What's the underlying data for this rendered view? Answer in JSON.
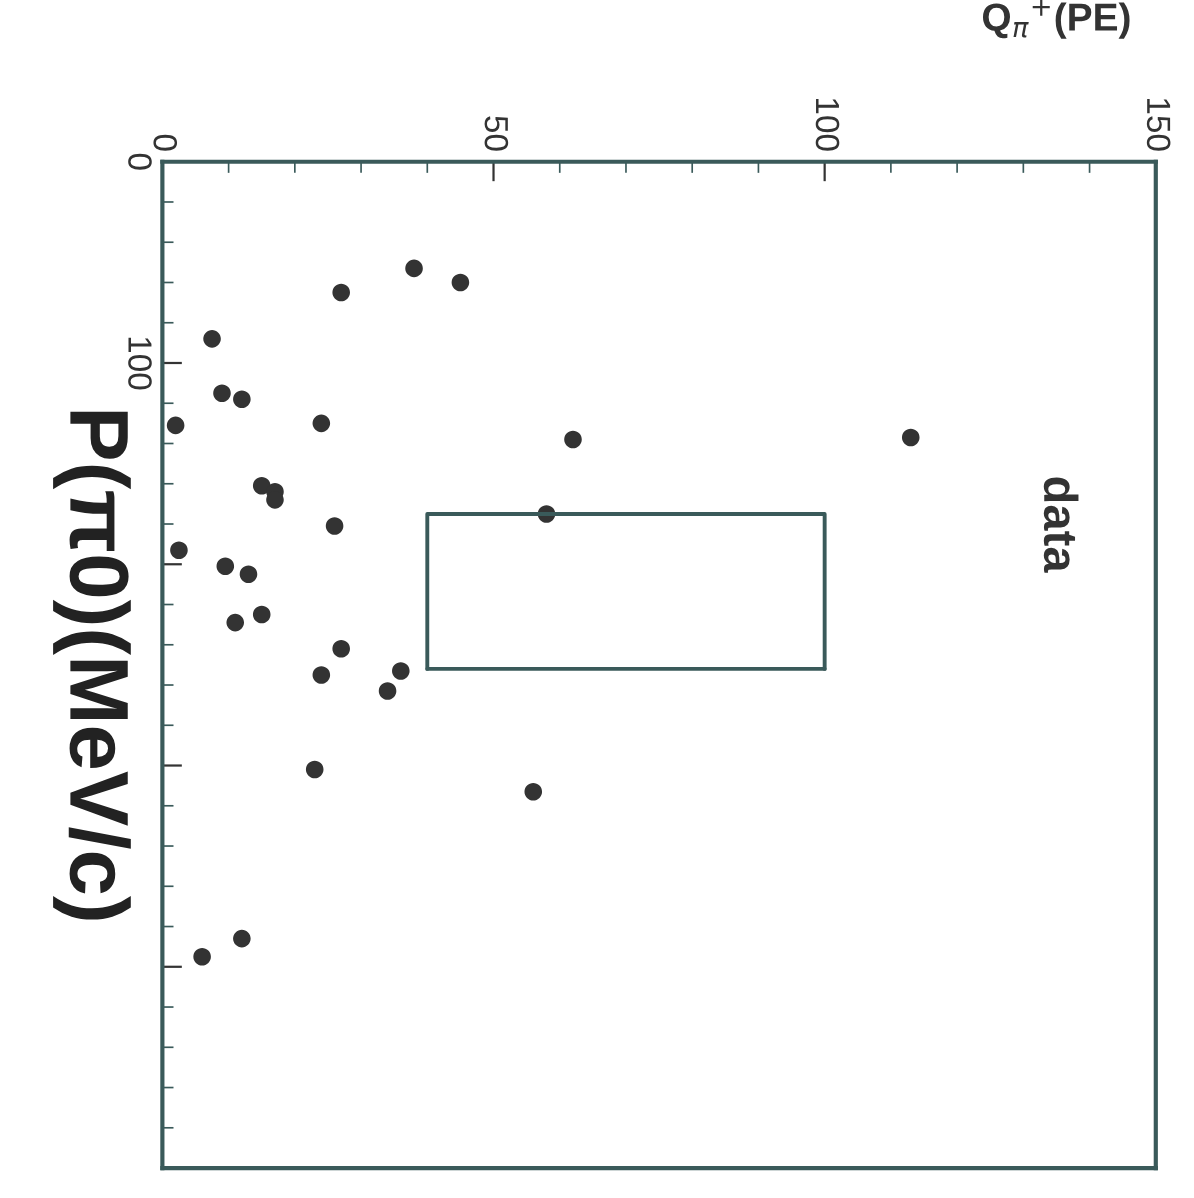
{
  "chart_data": {
    "type": "scatter",
    "xlabel": "Q$_{π}$$^{+}$(PE)",
    "ylabel": "P(π0)(MeV/c)",
    "annotations": [
      "data"
    ],
    "xlim": [
      0,
      150
    ],
    "xticks": [
      0,
      50,
      100,
      150
    ],
    "ylim": [
      500,
      0
    ],
    "yticks": [
      0,
      100,
      {
        "value": 200,
        "label": null
      },
      {
        "value": 300,
        "label": null
      },
      {
        "value": 400,
        "label": null
      },
      {
        "value": 500,
        "label": null
      }
    ],
    "grid": false,
    "legend": false,
    "marker": "circle",
    "series": [
      {
        "color": "#333333",
        "x": [
          38,
          45,
          27,
          7.5,
          9,
          12,
          2,
          24,
          62,
          113,
          15,
          17,
          17,
          26,
          58,
          2.5,
          9.5,
          13,
          15,
          11,
          27,
          24,
          36,
          34,
          23,
          56,
          12,
          6
        ],
        "values": [
          53,
          60,
          65,
          88,
          115,
          118,
          131,
          130,
          138,
          137,
          161,
          164,
          168,
          181,
          175,
          193,
          201,
          205,
          225,
          229,
          242,
          255,
          253,
          263,
          302,
          313,
          386,
          395
        ]
      },
      {
        "type": "line",
        "color": "#3a5a5a",
        "marker": "none",
        "line_style": "solid",
        "x": [
          40,
          40,
          100,
          100
        ],
        "values": [
          252,
          175,
          175,
          252
        ]
      },
      {
        "type": "line",
        "color": "#3a5a5a",
        "marker": "none",
        "line_style": "solid",
        "x": [
          40,
          100
        ],
        "values": [
          252,
          252
        ]
      }
    ]
  }
}
